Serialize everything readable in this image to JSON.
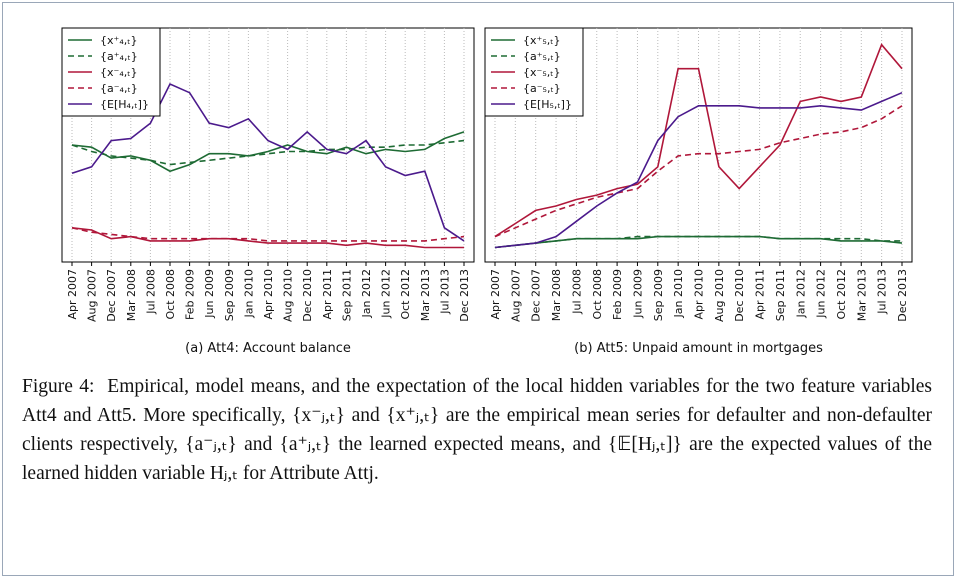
{
  "figure": {
    "label": "Figure 4:",
    "caption": "Empirical, model means, and the expectation of the local hidden variables for the two feature variables Att4 and Att5. More specifically, {x⁻ⱼ,ₜ} and {x⁺ⱼ,ₜ} are the empirical mean series for defaulter and non-defaulter clients respectively, {a⁻ⱼ,ₜ} and {a⁺ⱼ,ₜ} the learned expected means, and {𝔼[Hⱼ,ₜ]} are the expected values of the learned hidden variable Hⱼ,ₜ for Attribute Attj."
  },
  "chart_data": [
    {
      "type": "line",
      "caption": "(a) Att4: Account balance",
      "grid": true,
      "legend": "top-left",
      "ylim": [
        0,
        100
      ],
      "categories": [
        "Apr 2007",
        "Aug 2007",
        "Dec 2007",
        "Mar 2008",
        "Jul 2008",
        "Oct 2008",
        "Feb 2009",
        "Jun 2009",
        "Sep 2009",
        "Jan 2010",
        "Apr 2010",
        "Aug 2010",
        "Dec 2010",
        "Apr 2011",
        "Sep 2011",
        "Jan 2012",
        "Jun 2012",
        "Oct 2012",
        "Mar 2013",
        "Jul 2013",
        "Dec 2013"
      ],
      "series": [
        {
          "name": "{x⁺₄,ₜ}",
          "color": "#1e6b34",
          "dashed": false,
          "values": [
            50,
            49,
            44,
            45,
            43,
            38,
            41,
            46,
            46,
            45,
            47,
            50,
            47,
            46,
            49,
            46,
            48,
            47,
            48,
            53,
            56
          ]
        },
        {
          "name": "{a⁺₄,ₜ}",
          "color": "#1e6b34",
          "dashed": true,
          "values": [
            50,
            47,
            45,
            44,
            43,
            41,
            42,
            43,
            44,
            45,
            46,
            47,
            47,
            48,
            48,
            49,
            49,
            50,
            50,
            51,
            52
          ]
        },
        {
          "name": "{x⁻₄,ₜ}",
          "color": "#b0173a",
          "dashed": false,
          "values": [
            12,
            11,
            7,
            8,
            6,
            6,
            6,
            7,
            7,
            6,
            5,
            5,
            5,
            5,
            4,
            5,
            4,
            4,
            3,
            3,
            3
          ]
        },
        {
          "name": "{a⁻₄,ₜ}",
          "color": "#b0173a",
          "dashed": true,
          "values": [
            12,
            10,
            9,
            8,
            7,
            7,
            7,
            7,
            7,
            7,
            6,
            6,
            6,
            6,
            6,
            6,
            6,
            6,
            6,
            7,
            8
          ]
        },
        {
          "name": "{E[H₄,ₜ]}",
          "color": "#4b1a8c",
          "dashed": false,
          "values": [
            37,
            40,
            52,
            53,
            60,
            78,
            74,
            60,
            58,
            62,
            52,
            48,
            56,
            48,
            46,
            52,
            40,
            36,
            38,
            12,
            6
          ]
        }
      ]
    },
    {
      "type": "line",
      "caption": "(b) Att5: Unpaid amount in mortgages",
      "grid": true,
      "legend": "top-left",
      "ylim": [
        0,
        100
      ],
      "categories": [
        "Apr 2007",
        "Aug 2007",
        "Dec 2007",
        "Mar 2008",
        "Jul 2008",
        "Oct 2008",
        "Feb 2009",
        "Jun 2009",
        "Sep 2009",
        "Jan 2010",
        "Apr 2010",
        "Aug 2010",
        "Dec 2010",
        "Apr 2011",
        "Sep 2011",
        "Jan 2012",
        "Jun 2012",
        "Oct 2012",
        "Mar 2013",
        "Jul 2013",
        "Dec 2013"
      ],
      "series": [
        {
          "name": "{x⁺₅,ₜ}",
          "color": "#1e6b34",
          "dashed": false,
          "values": [
            3,
            4,
            5,
            6,
            7,
            7,
            7,
            7,
            8,
            8,
            8,
            8,
            8,
            8,
            7,
            7,
            7,
            6,
            6,
            6,
            5
          ]
        },
        {
          "name": "{a⁺₅,ₜ}",
          "color": "#1e6b34",
          "dashed": true,
          "values": [
            3,
            4,
            5,
            6,
            7,
            7,
            7,
            8,
            8,
            8,
            8,
            8,
            8,
            8,
            7,
            7,
            7,
            7,
            7,
            6,
            6
          ]
        },
        {
          "name": "{x⁻₅,ₜ}",
          "color": "#b0173a",
          "dashed": false,
          "values": [
            8,
            14,
            20,
            22,
            25,
            27,
            30,
            32,
            40,
            85,
            85,
            40,
            30,
            40,
            50,
            70,
            72,
            70,
            72,
            96,
            85
          ]
        },
        {
          "name": "{a⁻₅,ₜ}",
          "color": "#b0173a",
          "dashed": true,
          "values": [
            8,
            12,
            16,
            20,
            23,
            26,
            28,
            30,
            38,
            45,
            46,
            46,
            47,
            48,
            51,
            53,
            55,
            56,
            58,
            62,
            68
          ]
        },
        {
          "name": "{E[H₅,ₜ]}",
          "color": "#4b1a8c",
          "dashed": false,
          "values": [
            3,
            4,
            5,
            8,
            15,
            22,
            28,
            33,
            52,
            63,
            68,
            68,
            68,
            67,
            67,
            67,
            68,
            67,
            66,
            70,
            74
          ]
        }
      ]
    }
  ]
}
